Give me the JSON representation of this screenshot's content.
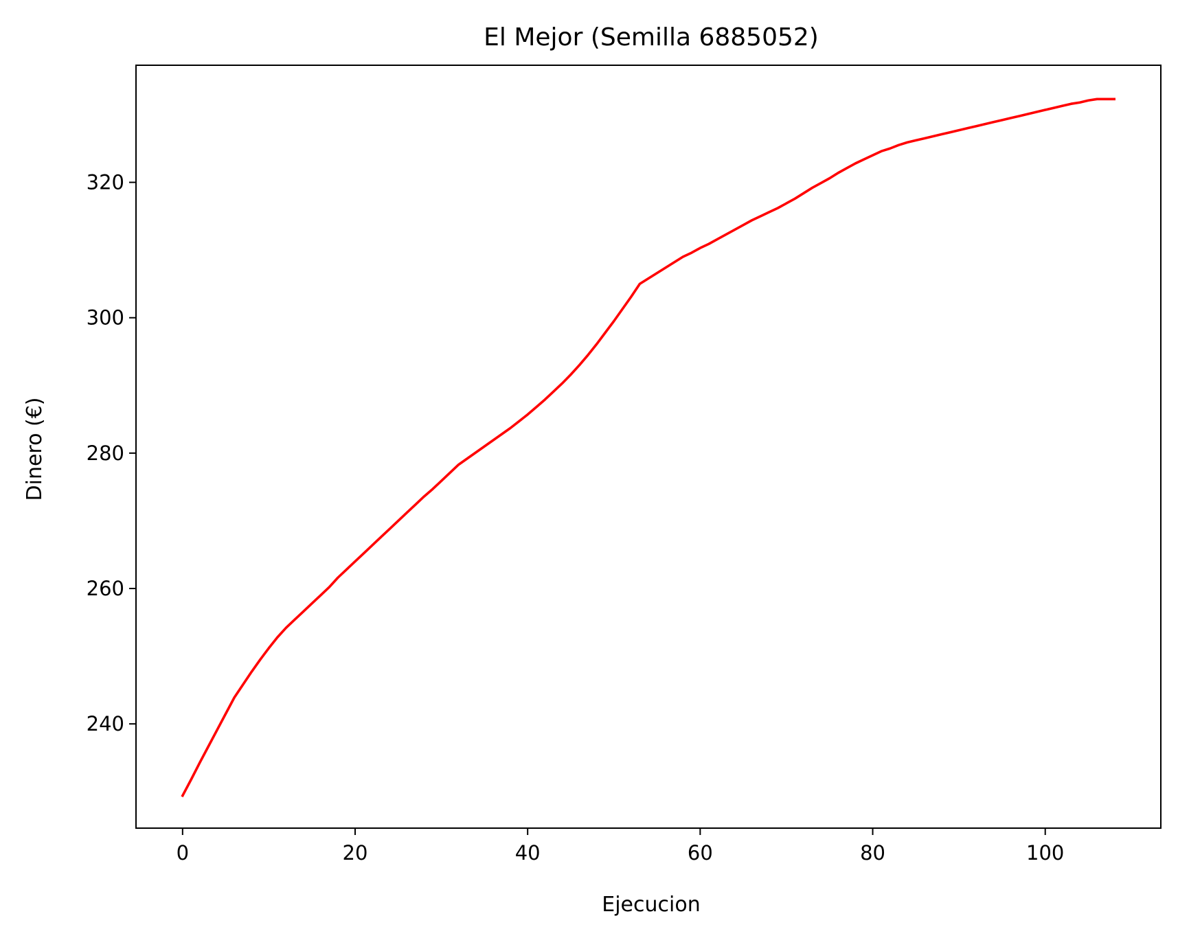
{
  "chart_data": {
    "type": "line",
    "title": "El Mejor (Semilla 6885052)",
    "xlabel": "Ejecucion",
    "ylabel": "Dinero (€)",
    "xlim": [
      -5.4,
      113.4
    ],
    "ylim": [
      224.6,
      337.3
    ],
    "xticks": [
      0,
      20,
      40,
      60,
      80,
      100
    ],
    "xtick_labels": [
      "0",
      "20",
      "40",
      "60",
      "80",
      "100"
    ],
    "yticks": [
      240,
      260,
      280,
      300,
      320
    ],
    "ytick_labels": [
      "240",
      "260",
      "280",
      "300",
      "320"
    ],
    "grid": false,
    "legend": "none",
    "series": [
      {
        "color": "#ff0000",
        "x": [
          0,
          1,
          2,
          3,
          4,
          5,
          6,
          7,
          8,
          9,
          10,
          11,
          12,
          13,
          14,
          15,
          16,
          17,
          18,
          19,
          20,
          21,
          22,
          23,
          24,
          25,
          26,
          27,
          28,
          29,
          30,
          31,
          32,
          33,
          34,
          35,
          36,
          37,
          38,
          39,
          40,
          41,
          42,
          43,
          44,
          45,
          46,
          47,
          48,
          49,
          50,
          51,
          52,
          53,
          54,
          55,
          56,
          57,
          58,
          59,
          60,
          61,
          62,
          63,
          64,
          65,
          66,
          67,
          68,
          69,
          70,
          71,
          72,
          73,
          74,
          75,
          76,
          77,
          78,
          79,
          80,
          81,
          82,
          83,
          84,
          85,
          86,
          87,
          88,
          89,
          90,
          91,
          92,
          93,
          94,
          95,
          96,
          97,
          98,
          99,
          100,
          101,
          102,
          103,
          104,
          105,
          106,
          107,
          108
        ],
        "y": [
          229.4,
          231.8,
          234.3,
          236.7,
          239.1,
          241.5,
          243.9,
          245.8,
          247.7,
          249.5,
          251.2,
          252.8,
          254.2,
          255.4,
          256.6,
          257.8,
          259.0,
          260.2,
          261.6,
          262.8,
          264.0,
          265.2,
          266.4,
          267.6,
          268.8,
          270.0,
          271.2,
          272.4,
          273.6,
          274.7,
          275.9,
          277.1,
          278.3,
          279.2,
          280.1,
          281.0,
          281.9,
          282.8,
          283.7,
          284.7,
          285.7,
          286.8,
          287.9,
          289.1,
          290.3,
          291.6,
          293.0,
          294.5,
          296.1,
          297.8,
          299.5,
          301.3,
          303.1,
          305.0,
          305.8,
          306.6,
          307.4,
          308.2,
          309.0,
          309.6,
          310.3,
          310.9,
          311.6,
          312.3,
          313.0,
          313.7,
          314.4,
          315.0,
          315.6,
          316.2,
          316.9,
          317.6,
          318.4,
          319.2,
          319.9,
          320.6,
          321.4,
          322.1,
          322.8,
          323.4,
          324.0,
          324.6,
          325.0,
          325.5,
          325.9,
          326.2,
          326.5,
          326.8,
          327.1,
          327.4,
          327.7,
          328.0,
          328.3,
          328.6,
          328.9,
          329.2,
          329.5,
          329.8,
          330.1,
          330.4,
          330.7,
          331.0,
          331.3,
          331.6,
          331.8,
          332.1,
          332.3,
          332.3,
          332.3
        ]
      }
    ]
  }
}
